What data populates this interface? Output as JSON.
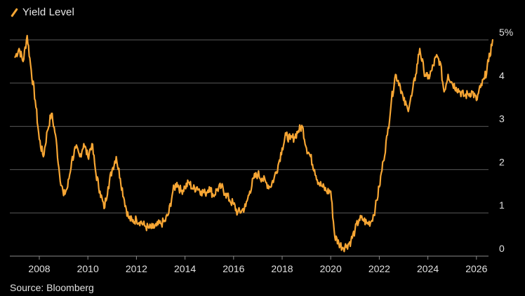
{
  "legend": {
    "label": "Yield Level",
    "icon": "orange-line-icon"
  },
  "source": "Source: Bloomberg",
  "colors": {
    "background": "#000000",
    "series": "#f7a634",
    "grid": "#5a5a5a",
    "text": "#e0e0e0"
  },
  "chart_data": {
    "type": "line",
    "title": "",
    "xlabel": "",
    "ylabel": "",
    "grid": true,
    "legend_position": "top-left",
    "x_ticks": [
      "2008",
      "2010",
      "2012",
      "2014",
      "2016",
      "2018",
      "2020",
      "2022",
      "2024",
      "2026"
    ],
    "y_ticks": [
      "0",
      "1",
      "2",
      "3",
      "4",
      "5%"
    ],
    "ylim": [
      0,
      5
    ],
    "xlim": [
      "2006-12",
      "2026-12"
    ],
    "series": [
      {
        "name": "Yield Level",
        "x": [
          "2007-01",
          "2007-03",
          "2007-05",
          "2007-07",
          "2007-09",
          "2007-11",
          "2008-01",
          "2008-03",
          "2008-05",
          "2008-07",
          "2008-09",
          "2008-11",
          "2009-01",
          "2009-03",
          "2009-05",
          "2009-07",
          "2009-09",
          "2009-11",
          "2010-01",
          "2010-03",
          "2010-05",
          "2010-07",
          "2010-09",
          "2010-11",
          "2011-01",
          "2011-03",
          "2011-05",
          "2011-07",
          "2011-09",
          "2011-11",
          "2012-01",
          "2012-03",
          "2012-05",
          "2012-07",
          "2012-09",
          "2012-11",
          "2013-01",
          "2013-03",
          "2013-05",
          "2013-07",
          "2013-09",
          "2013-11",
          "2014-01",
          "2014-03",
          "2014-05",
          "2014-07",
          "2014-09",
          "2014-11",
          "2015-01",
          "2015-03",
          "2015-05",
          "2015-07",
          "2015-09",
          "2015-11",
          "2016-01",
          "2016-03",
          "2016-05",
          "2016-07",
          "2016-09",
          "2016-11",
          "2017-01",
          "2017-03",
          "2017-05",
          "2017-07",
          "2017-09",
          "2017-11",
          "2018-01",
          "2018-03",
          "2018-05",
          "2018-07",
          "2018-09",
          "2018-11",
          "2019-01",
          "2019-03",
          "2019-05",
          "2019-07",
          "2019-09",
          "2019-11",
          "2020-01",
          "2020-03",
          "2020-05",
          "2020-07",
          "2020-09",
          "2020-11",
          "2021-01",
          "2021-03",
          "2021-05",
          "2021-07",
          "2021-09",
          "2021-11",
          "2022-01",
          "2022-03",
          "2022-05",
          "2022-07",
          "2022-09",
          "2022-11",
          "2023-01",
          "2023-03",
          "2023-05",
          "2023-07",
          "2023-09",
          "2023-11",
          "2024-01",
          "2024-03",
          "2024-05",
          "2024-07",
          "2024-09",
          "2024-11",
          "2025-01",
          "2025-03",
          "2025-05",
          "2025-07",
          "2025-09",
          "2025-11",
          "2026-01",
          "2026-03",
          "2026-05",
          "2026-07",
          "2026-09"
        ],
        "values": [
          4.6,
          4.8,
          4.5,
          5.1,
          4.3,
          3.6,
          2.7,
          2.3,
          2.9,
          3.3,
          2.8,
          1.9,
          1.4,
          1.6,
          2.2,
          2.5,
          2.3,
          2.6,
          2.3,
          2.6,
          1.9,
          1.5,
          1.1,
          1.6,
          2.0,
          2.3,
          1.8,
          1.3,
          0.9,
          0.8,
          0.85,
          0.8,
          0.7,
          0.65,
          0.65,
          0.7,
          0.75,
          0.8,
          1.0,
          1.5,
          1.7,
          1.5,
          1.6,
          1.7,
          1.55,
          1.6,
          1.5,
          1.45,
          1.6,
          1.4,
          1.55,
          1.6,
          1.45,
          1.3,
          1.2,
          1.0,
          1.05,
          1.15,
          1.5,
          1.8,
          1.9,
          1.8,
          1.7,
          1.6,
          1.8,
          2.1,
          2.5,
          2.8,
          2.7,
          2.75,
          2.9,
          3.0,
          2.5,
          2.3,
          2.0,
          1.7,
          1.6,
          1.5,
          1.5,
          0.45,
          0.3,
          0.2,
          0.25,
          0.35,
          0.6,
          0.85,
          0.85,
          0.75,
          0.8,
          1.1,
          1.6,
          2.2,
          2.8,
          3.6,
          4.2,
          4.0,
          3.6,
          3.4,
          3.7,
          4.2,
          4.8,
          4.3,
          4.1,
          4.3,
          4.6,
          4.5,
          3.8,
          4.2,
          4.0,
          3.9,
          3.8,
          3.7,
          3.75,
          3.8,
          3.6,
          3.9,
          4.1,
          4.5,
          5.0
        ]
      }
    ]
  }
}
